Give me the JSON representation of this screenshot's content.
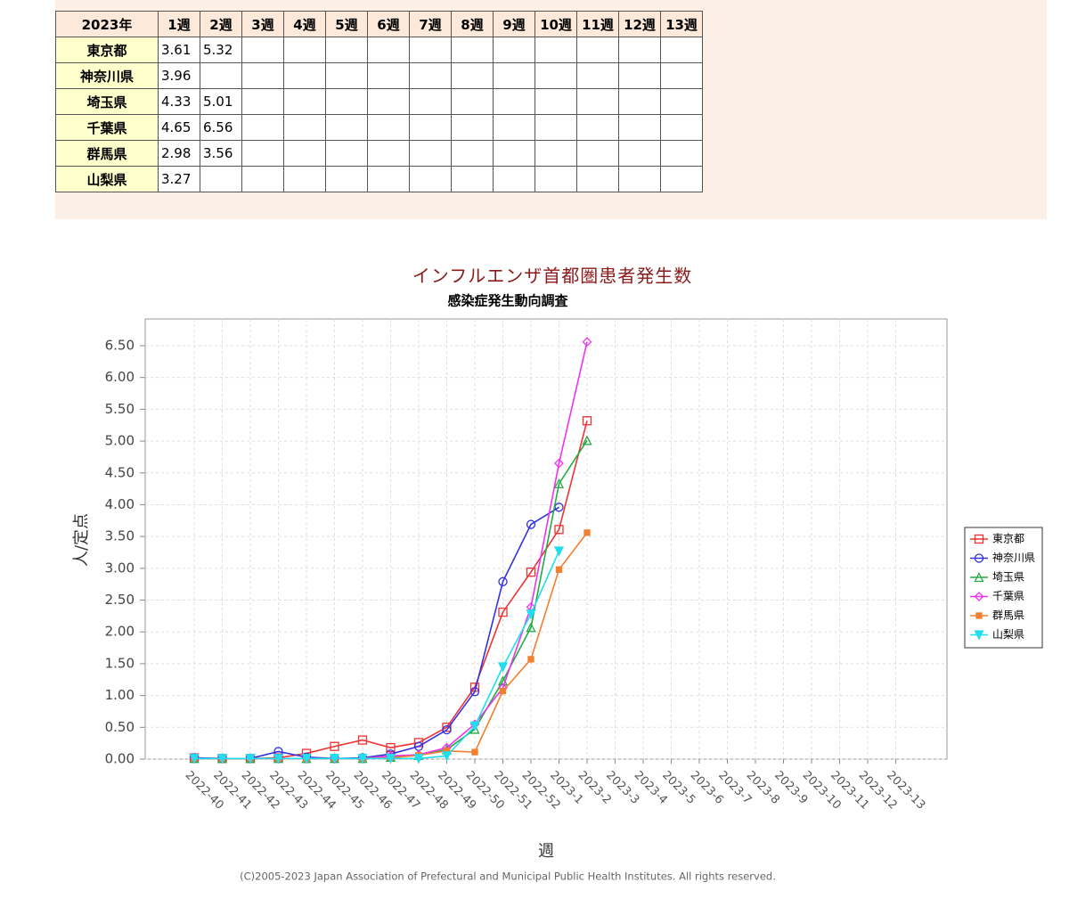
{
  "table": {
    "header": [
      "2023年",
      "1週",
      "2週",
      "3週",
      "4週",
      "5週",
      "6週",
      "7週",
      "8週",
      "9週",
      "10週",
      "11週",
      "12週",
      "13週"
    ],
    "rows": [
      {
        "label": "東京都",
        "values": [
          3.61,
          5.32
        ]
      },
      {
        "label": "神奈川県",
        "values": [
          3.96
        ]
      },
      {
        "label": "埼玉県",
        "values": [
          4.33,
          5.01
        ]
      },
      {
        "label": "千葉県",
        "values": [
          4.65,
          6.56
        ]
      },
      {
        "label": "群馬県",
        "values": [
          2.98,
          3.56
        ]
      },
      {
        "label": "山梨県",
        "values": [
          3.27
        ]
      }
    ]
  },
  "chart_data": {
    "type": "line",
    "title": "インフルエンザ首都圏患者発生数",
    "subtitle": "感染症発生動向調査",
    "x_label": "週",
    "y_label": "人/定点",
    "copyright": "(C)2005-2023 Japan Association of Prefectural and Municipal Public Health Institutes. All rights reserved.",
    "categories": [
      "2022-40",
      "2022-41",
      "2022-42",
      "2022-43",
      "2022-44",
      "2022-45",
      "2022-46",
      "2022-47",
      "2022-48",
      "2022-49",
      "2022-50",
      "2022-51",
      "2022-52",
      "2023-1",
      "2023-2",
      "2023-3",
      "2023-4",
      "2023-5",
      "2023-6",
      "2023-7",
      "2023-8",
      "2023-9",
      "2023-10",
      "2023-11",
      "2023-12",
      "2023-13"
    ],
    "ylim": [
      0,
      6.92
    ],
    "yticks": [
      {
        "value": 0,
        "label": "0.00"
      },
      {
        "value": 0.5,
        "label": "0.50"
      },
      {
        "value": 1,
        "label": "1.00"
      },
      {
        "value": 1.5,
        "label": "1.50"
      },
      {
        "value": 2,
        "label": "2.00"
      },
      {
        "value": 2.5,
        "label": "2.50"
      },
      {
        "value": 3,
        "label": "3.00"
      },
      {
        "value": 3.5,
        "label": "3.50"
      },
      {
        "value": 4,
        "label": "4.00"
      },
      {
        "value": 4.5,
        "label": "4.50"
      },
      {
        "value": 5,
        "label": "5.00"
      },
      {
        "value": 5.5,
        "label": "5.50"
      },
      {
        "value": 6,
        "label": "6.00"
      },
      {
        "value": 6.5,
        "label": "6.50"
      }
    ],
    "grid": true,
    "legend": "right",
    "series": [
      {
        "name": "東京都",
        "color": "#ee3333",
        "marker": "square",
        "values": [
          0.02,
          0.01,
          0.01,
          0.02,
          0.09,
          0.2,
          0.3,
          0.18,
          0.26,
          0.5,
          1.13,
          2.31,
          2.94,
          3.61,
          5.32,
          null,
          null,
          null,
          null,
          null,
          null,
          null,
          null,
          null,
          null,
          null
        ]
      },
      {
        "name": "神奈川県",
        "color": "#3333dd",
        "marker": "circle",
        "values": [
          0.02,
          0.01,
          0.01,
          0.12,
          0.03,
          0.01,
          0.02,
          0.08,
          0.2,
          0.46,
          1.06,
          2.79,
          3.69,
          3.96,
          null,
          null,
          null,
          null,
          null,
          null,
          null,
          null,
          null,
          null,
          null,
          null
        ]
      },
      {
        "name": "埼玉県",
        "color": "#22aa44",
        "marker": "triangle",
        "values": [
          0.01,
          0.01,
          0.01,
          0.01,
          0.01,
          0.01,
          0.01,
          0.03,
          0.06,
          0.15,
          0.47,
          1.23,
          2.07,
          4.33,
          5.01,
          null,
          null,
          null,
          null,
          null,
          null,
          null,
          null,
          null,
          null,
          null
        ]
      },
      {
        "name": "千葉県",
        "color": "#ee33ee",
        "marker": "diamond",
        "values": [
          0.01,
          0.01,
          0.01,
          0.01,
          0.01,
          0.01,
          0.01,
          0.05,
          0.07,
          0.18,
          0.55,
          1.12,
          2.39,
          4.65,
          6.56,
          null,
          null,
          null,
          null,
          null,
          null,
          null,
          null,
          null,
          null,
          null
        ]
      },
      {
        "name": "群馬県",
        "color": "#f08030",
        "marker": "smallsquare",
        "values": [
          0.01,
          0.01,
          0.01,
          0.01,
          0.01,
          0.01,
          0.01,
          0.02,
          0.06,
          0.13,
          0.11,
          1.07,
          1.57,
          2.98,
          3.56,
          null,
          null,
          null,
          null,
          null,
          null,
          null,
          null,
          null,
          null,
          null
        ]
      },
      {
        "name": "山梨県",
        "color": "#22ddee",
        "marker": "triangledown",
        "values": [
          0.01,
          0.01,
          0.01,
          0.01,
          0.01,
          0.01,
          0.01,
          0.01,
          0.01,
          0.05,
          0.52,
          1.45,
          2.28,
          3.27,
          null,
          null,
          null,
          null,
          null,
          null,
          null,
          null,
          null,
          null,
          null,
          null
        ]
      }
    ]
  }
}
